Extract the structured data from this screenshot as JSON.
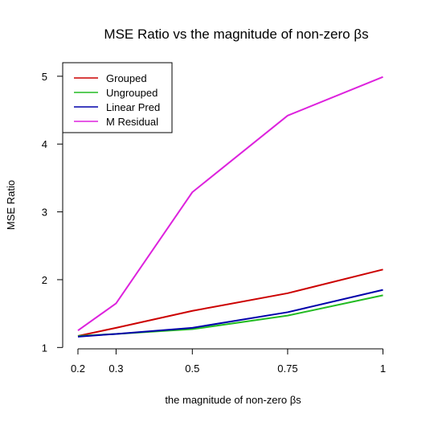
{
  "chart_data": {
    "type": "line",
    "title": "MSE Ratio vs the magnitude of non-zero βs",
    "xlabel": "the magnitude of non-zero βs",
    "ylabel": "MSE Ratio",
    "x": [
      0.2,
      0.3,
      0.5,
      0.75,
      1
    ],
    "x_tick_labels": [
      "0.2",
      "0.3",
      "0.5",
      "0.75",
      "1"
    ],
    "y_ticks": [
      1,
      2,
      3,
      4,
      5
    ],
    "y_tick_labels": [
      "1",
      "2",
      "3",
      "4",
      "5"
    ],
    "xlim": [
      0.16,
      1.02
    ],
    "ylim": [
      0.98,
      5.2
    ],
    "grid": false,
    "legend_position": "top-left",
    "series": [
      {
        "name": "Grouped",
        "color": "#cc0000",
        "values": [
          1.17,
          1.29,
          1.54,
          1.8,
          2.15
        ]
      },
      {
        "name": "Ungrouped",
        "color": "#22bb22",
        "values": [
          1.17,
          1.2,
          1.27,
          1.47,
          1.77
        ]
      },
      {
        "name": "Linear Pred",
        "color": "#0000aa",
        "values": [
          1.16,
          1.2,
          1.29,
          1.52,
          1.85
        ]
      },
      {
        "name": "M Residual",
        "color": "#dd22dd",
        "values": [
          1.25,
          1.65,
          3.29,
          4.42,
          4.99
        ]
      }
    ]
  }
}
